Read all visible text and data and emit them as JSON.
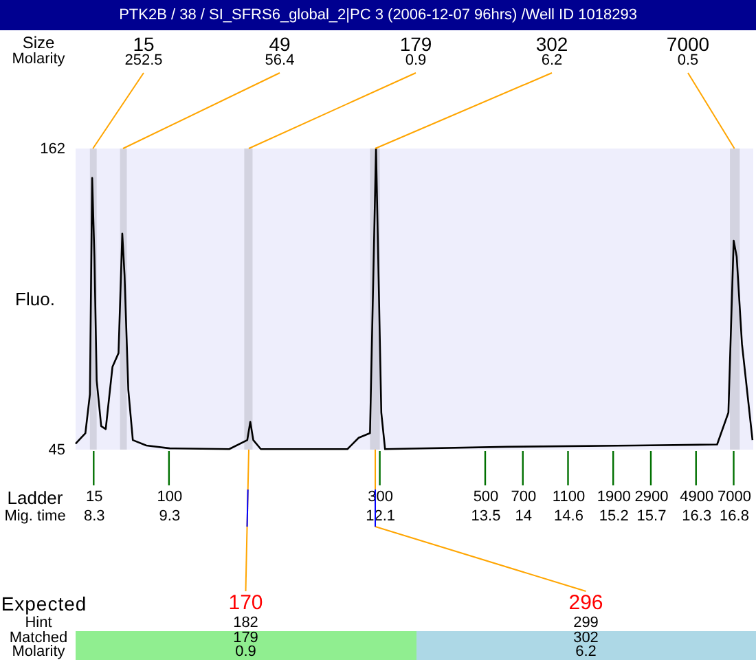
{
  "chart_data": {
    "type": "line",
    "title": "PTK2B / 38 / SI_SFRS6_global_2|PC 3 (2006-12-07 96hrs) /Well ID 1018293",
    "ylabel": "Fluo.",
    "xlabel": "Mig. time",
    "xlim": [
      8.06,
      17.06
    ],
    "ylim": [
      45,
      162
    ],
    "yticks": [
      45,
      162
    ],
    "xticks": [
      8.3,
      9.3,
      12.1,
      13.5,
      14,
      14.6,
      15.2,
      15.7,
      16.3,
      16.8
    ],
    "series": [
      {
        "color": "#000000",
        "x": [
          8.06,
          8.19,
          8.25,
          8.28,
          8.31,
          8.34,
          8.4,
          8.46,
          8.55,
          8.63,
          8.68,
          8.71,
          8.76,
          8.82,
          9,
          9.31,
          10.1,
          10.34,
          10.38,
          10.42,
          10.52,
          11.67,
          11.82,
          11.97,
          12.05,
          12.12,
          12.17,
          13.79,
          15.49,
          16.58,
          16.73,
          16.8,
          16.84,
          16.91,
          17.05
        ],
        "values": [
          47.3,
          51.4,
          66.5,
          150.6,
          120,
          71.9,
          54.1,
          53,
          77.2,
          82.5,
          128.9,
          112.8,
          68.3,
          48.7,
          46.6,
          45.5,
          45.2,
          48.7,
          55.8,
          48.7,
          45.2,
          45.2,
          49.6,
          51.4,
          162,
          59.4,
          45.2,
          46.1,
          46.6,
          47,
          59.4,
          126.2,
          120,
          86.1,
          48.7
        ]
      }
    ],
    "bands": [
      {
        "axis": "x",
        "from": 8.25,
        "to": 8.34,
        "color": "#d3d3e0"
      },
      {
        "axis": "x",
        "from": 8.65,
        "to": 8.74,
        "color": "#d3d3e0"
      },
      {
        "axis": "x",
        "from": 10.3,
        "to": 10.41,
        "color": "#d3d3e0"
      },
      {
        "axis": "x",
        "from": 11.97,
        "to": 12.1,
        "color": "#d3d3e0"
      },
      {
        "axis": "x",
        "from": 16.75,
        "to": 16.88,
        "color": "#d3d3e0"
      }
    ],
    "annotations": [
      "Size",
      "Molarity",
      {
        "text": "15",
        "x": 8.29,
        "y": 162
      },
      {
        "text": "49",
        "x": 8.69,
        "y": 162
      },
      {
        "text": "179",
        "x": 10.36,
        "y": 162
      },
      {
        "text": "302",
        "x": 12.04,
        "y": 162
      },
      {
        "text": "7000",
        "x": 16.81,
        "y": 162
      },
      "252.5",
      "56.4",
      "0.9",
      "6.2",
      "0.5",
      "Expected",
      "Hint",
      "Matched",
      "Molarity",
      {
        "text": "170",
        "x": 10.36,
        "y": 45
      },
      "182",
      "179",
      "0.9",
      {
        "text": "296",
        "x": 12.04,
        "y": 45
      },
      "299",
      "302",
      "6.2",
      "Ladder",
      {
        "text": "15",
        "x": 8.3,
        "y": 45
      },
      {
        "text": "100",
        "x": 9.3,
        "y": 45
      },
      {
        "text": "300",
        "x": 12.1,
        "y": 45
      },
      {
        "text": "500",
        "x": 13.5,
        "y": 45
      },
      {
        "text": "700",
        "x": 14,
        "y": 45
      },
      {
        "text": "1100",
        "x": 14.6,
        "y": 45
      },
      {
        "text": "1900",
        "x": 15.2,
        "y": 45
      },
      {
        "text": "2900",
        "x": 15.7,
        "y": 45
      },
      {
        "text": "4900",
        "x": 16.3,
        "y": 45
      },
      {
        "text": "7000",
        "x": 16.8,
        "y": 45
      }
    ]
  }
}
